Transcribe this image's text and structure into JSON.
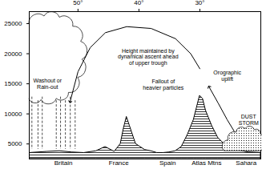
{
  "chart_data": {
    "type": "profile",
    "xlim": [
      58,
      20
    ],
    "xticks": [
      {
        "value": 50,
        "label": "50°"
      },
      {
        "value": 40,
        "label": "40°"
      },
      {
        "value": 30,
        "label": "30°"
      }
    ],
    "ylim": [
      2500,
      27000
    ],
    "yticks": [
      5000,
      10000,
      15000,
      20000,
      25000
    ],
    "place_labels": [
      {
        "value": 52.4,
        "label": "Britain"
      },
      {
        "value": 43.3,
        "label": "France"
      },
      {
        "value": 35.3,
        "label": "Spain"
      },
      {
        "value": 28.9,
        "label": "Atlas Mtns"
      },
      {
        "value": 22.4,
        "label": "Sahara"
      }
    ],
    "series": [
      {
        "type": "area",
        "color": "#000000",
        "x": [
          58,
          55,
          53,
          51,
          49,
          47,
          45.5,
          44,
          43,
          42.5,
          42,
          41.5,
          40.5,
          39,
          38,
          37,
          36,
          35,
          34,
          33,
          32,
          31,
          30.5,
          30,
          29.5,
          29,
          28,
          27,
          26,
          25,
          24,
          22,
          20
        ],
        "values": [
          3500,
          3700,
          3800,
          3600,
          3500,
          3800,
          4500,
          3700,
          5000,
          7500,
          9500,
          8000,
          5000,
          4000,
          3800,
          3500,
          3500,
          3600,
          3800,
          4500,
          6500,
          9000,
          11000,
          13000,
          12500,
          10500,
          8000,
          6000,
          5000,
          4500,
          4000,
          3600,
          3500
        ]
      },
      {
        "type": "line",
        "color": "#000000",
        "marker": "arrow",
        "x": [
          24,
          25.5,
          27,
          28.5
        ],
        "values": [
          6500,
          9000,
          11800,
          14500
        ]
      },
      {
        "type": "line",
        "color": "#000000",
        "marker": "arrow",
        "x": [
          30,
          31.5,
          34,
          38,
          42,
          45.5,
          48,
          50,
          51.3
        ],
        "values": [
          17500,
          20000,
          22500,
          24200,
          24500,
          23500,
          21000,
          17000,
          12000
        ]
      }
    ],
    "annotations": [
      "Height maintained by\ndynamical ascent ahead\nof upper trough",
      "Washout or\nRain-out",
      "Fallout of\nheavier particles",
      "Orographic\nuplift",
      "DUST\nSTORM"
    ]
  }
}
